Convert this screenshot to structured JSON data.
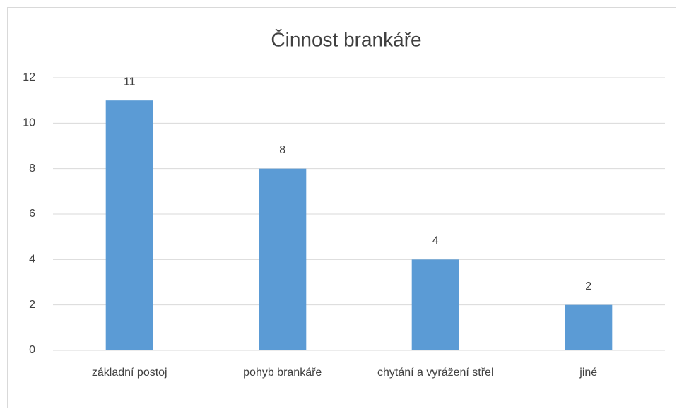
{
  "chart_data": {
    "type": "bar",
    "title": "Činnost brankáře",
    "categories": [
      "základní postoj",
      "pohyb brankáře",
      "chytání a vyrážení střel",
      "jiné"
    ],
    "values": [
      11,
      8,
      4,
      2
    ],
    "color": "#5b9bd5",
    "ylim": [
      0,
      12
    ],
    "yticks": [
      0,
      2,
      4,
      6,
      8,
      10,
      12
    ],
    "grid": true
  }
}
